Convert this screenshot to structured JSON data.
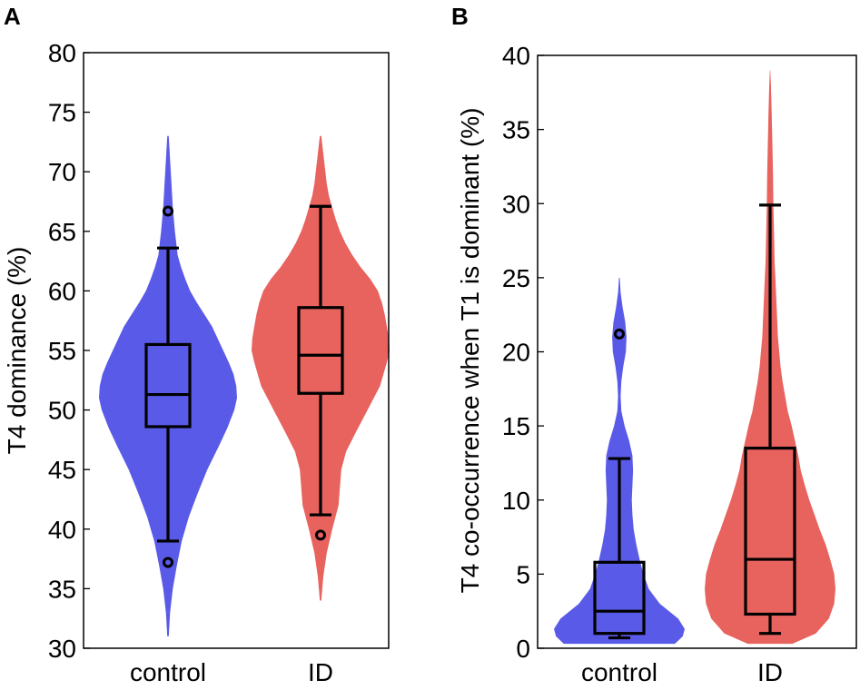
{
  "chart_data": [
    {
      "panel": "A",
      "type": "violin",
      "ylabel": "T4 dominance (%)",
      "ylim": [
        30,
        80
      ],
      "yticks": [
        30,
        35,
        40,
        45,
        50,
        55,
        60,
        65,
        70,
        75,
        80
      ],
      "categories": [
        "control",
        "ID"
      ],
      "series": [
        {
          "name": "control",
          "color": "#5a5ae8",
          "box": {
            "whisker_low": 39.0,
            "q1": 48.6,
            "median": 51.3,
            "q3": 55.5,
            "whisker_high": 63.6
          },
          "outliers": [
            66.7,
            37.2
          ],
          "density": [
            [
              31,
              0.01
            ],
            [
              33,
              0.03
            ],
            [
              35,
              0.07
            ],
            [
              37,
              0.13
            ],
            [
              39,
              0.2
            ],
            [
              41,
              0.3
            ],
            [
              43,
              0.43
            ],
            [
              45,
              0.57
            ],
            [
              47,
              0.74
            ],
            [
              48.5,
              0.86
            ],
            [
              50,
              0.96
            ],
            [
              51,
              1.0
            ],
            [
              52,
              0.99
            ],
            [
              53,
              0.95
            ],
            [
              54,
              0.88
            ],
            [
              55,
              0.8
            ],
            [
              56,
              0.72
            ],
            [
              57,
              0.64
            ],
            [
              58,
              0.53
            ],
            [
              59,
              0.42
            ],
            [
              60,
              0.32
            ],
            [
              61,
              0.25
            ],
            [
              62,
              0.19
            ],
            [
              63,
              0.14
            ],
            [
              65,
              0.1
            ],
            [
              67,
              0.07
            ],
            [
              69,
              0.05
            ],
            [
              71,
              0.03
            ],
            [
              73,
              0.01
            ]
          ]
        },
        {
          "name": "ID",
          "color": "#e8625e",
          "box": {
            "whisker_low": 41.2,
            "q1": 51.4,
            "median": 54.6,
            "q3": 58.6,
            "whisker_high": 67.1
          },
          "outliers": [
            39.5
          ],
          "density": [
            [
              34,
              0.01
            ],
            [
              36,
              0.04
            ],
            [
              38,
              0.09
            ],
            [
              40,
              0.17
            ],
            [
              42,
              0.26
            ],
            [
              43.5,
              0.28
            ],
            [
              45,
              0.3
            ],
            [
              46.5,
              0.37
            ],
            [
              48,
              0.5
            ],
            [
              50,
              0.68
            ],
            [
              52,
              0.86
            ],
            [
              54,
              0.96
            ],
            [
              55,
              1.0
            ],
            [
              56,
              0.99
            ],
            [
              57,
              0.96
            ],
            [
              58,
              0.93
            ],
            [
              59,
              0.89
            ],
            [
              60,
              0.83
            ],
            [
              61,
              0.72
            ],
            [
              62,
              0.58
            ],
            [
              63,
              0.46
            ],
            [
              64,
              0.36
            ],
            [
              65,
              0.28
            ],
            [
              66,
              0.22
            ],
            [
              67,
              0.17
            ],
            [
              68,
              0.12
            ],
            [
              69,
              0.09
            ],
            [
              71,
              0.05
            ],
            [
              73,
              0.01
            ]
          ]
        }
      ]
    },
    {
      "panel": "B",
      "type": "violin",
      "ylabel": "T4 co-occurrence when T1 is dominant (%)",
      "ylim": [
        0,
        40
      ],
      "yticks": [
        0,
        5,
        10,
        15,
        20,
        25,
        30,
        35,
        40
      ],
      "categories": [
        "control",
        "ID"
      ],
      "series": [
        {
          "name": "control",
          "color": "#5a5ae8",
          "box": {
            "whisker_low": 0.7,
            "q1": 1.0,
            "median": 2.5,
            "q3": 5.8,
            "whisker_high": 12.8
          },
          "outliers": [
            21.2
          ],
          "density": [
            [
              0.3,
              0.85
            ],
            [
              0.8,
              0.97
            ],
            [
              1.3,
              1.0
            ],
            [
              2,
              0.9
            ],
            [
              3,
              0.62
            ],
            [
              4,
              0.45
            ],
            [
              5,
              0.37
            ],
            [
              6,
              0.31
            ],
            [
              7,
              0.26
            ],
            [
              8,
              0.22
            ],
            [
              9,
              0.2
            ],
            [
              10,
              0.19
            ],
            [
              11,
              0.2
            ],
            [
              12,
              0.21
            ],
            [
              13,
              0.2
            ],
            [
              14,
              0.15
            ],
            [
              15,
              0.08
            ],
            [
              16,
              0.03
            ],
            [
              17,
              0.02
            ],
            [
              18,
              0.03
            ],
            [
              19,
              0.06
            ],
            [
              20,
              0.1
            ],
            [
              21,
              0.11
            ],
            [
              22,
              0.09
            ],
            [
              23,
              0.05
            ],
            [
              24,
              0.02
            ],
            [
              25,
              0.005
            ]
          ]
        },
        {
          "name": "ID",
          "color": "#e8625e",
          "box": {
            "whisker_low": 1.0,
            "q1": 2.3,
            "median": 6.0,
            "q3": 13.5,
            "whisker_high": 29.9
          },
          "outliers": [],
          "density": [
            [
              0.3,
              0.34
            ],
            [
              1,
              0.7
            ],
            [
              2,
              0.9
            ],
            [
              3,
              0.98
            ],
            [
              4,
              1.0
            ],
            [
              5,
              0.98
            ],
            [
              6,
              0.92
            ],
            [
              7,
              0.85
            ],
            [
              8,
              0.76
            ],
            [
              9,
              0.68
            ],
            [
              10,
              0.6
            ],
            [
              11,
              0.53
            ],
            [
              12,
              0.47
            ],
            [
              13,
              0.43
            ],
            [
              14,
              0.38
            ],
            [
              15,
              0.33
            ],
            [
              16,
              0.27
            ],
            [
              17,
              0.23
            ],
            [
              18,
              0.19
            ],
            [
              19,
              0.16
            ],
            [
              20,
              0.14
            ],
            [
              21,
              0.12
            ],
            [
              22,
              0.11
            ],
            [
              23,
              0.1
            ],
            [
              24,
              0.09
            ],
            [
              25,
              0.08
            ],
            [
              26,
              0.07
            ],
            [
              28,
              0.06
            ],
            [
              30,
              0.05
            ],
            [
              32,
              0.045
            ],
            [
              34,
              0.035
            ],
            [
              36,
              0.025
            ],
            [
              38,
              0.012
            ],
            [
              39,
              0.003
            ]
          ]
        }
      ]
    }
  ]
}
